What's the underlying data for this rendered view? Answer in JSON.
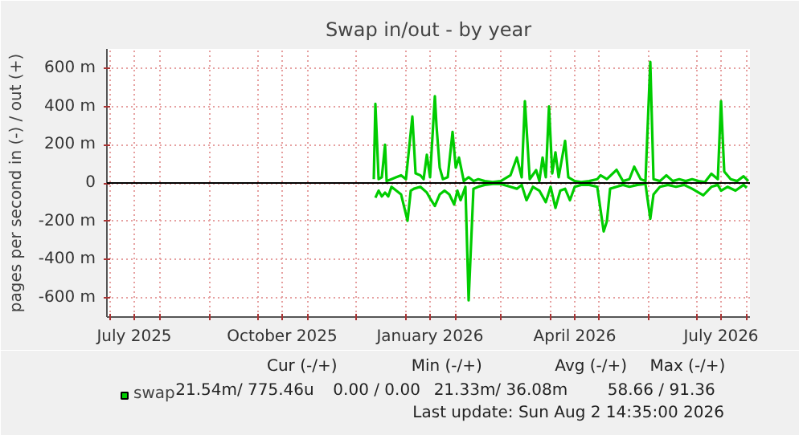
{
  "chart_data": {
    "type": "line",
    "title": "Swap in/out - by year",
    "ylabel": "pages per second in (-) / out (+)",
    "xlim": [
      "2025-06-29",
      "2026-08-03"
    ],
    "ylim": [
      -700,
      700
    ],
    "xticks": [
      {
        "value": "2025-07-01",
        "label": null
      },
      {
        "value": "2025-07-16",
        "label": "July 2025"
      },
      {
        "value": "2025-08-01",
        "label": null
      },
      {
        "value": "2025-09-01",
        "label": null
      },
      {
        "value": "2025-10-01",
        "label": null
      },
      {
        "value": "2025-10-16",
        "label": "October 2025"
      },
      {
        "value": "2025-11-01",
        "label": null
      },
      {
        "value": "2025-12-01",
        "label": null
      },
      {
        "value": "2026-01-01",
        "label": null
      },
      {
        "value": "2026-01-16",
        "label": "January 2026"
      },
      {
        "value": "2026-02-01",
        "label": null
      },
      {
        "value": "2026-03-01",
        "label": null
      },
      {
        "value": "2026-04-01",
        "label": null
      },
      {
        "value": "2026-04-16",
        "label": "April 2026"
      },
      {
        "value": "2026-05-01",
        "label": null
      },
      {
        "value": "2026-06-01",
        "label": null
      },
      {
        "value": "2026-07-01",
        "label": null
      },
      {
        "value": "2026-07-16",
        "label": "July 2026"
      },
      {
        "value": "2026-08-01",
        "label": null
      }
    ],
    "yticks": [
      {
        "value": -600,
        "label": "-600 m"
      },
      {
        "value": -400,
        "label": "-400 m"
      },
      {
        "value": -200,
        "label": "-200 m"
      },
      0,
      {
        "value": 200,
        "label": "200 m"
      },
      {
        "value": 400,
        "label": "400 m"
      },
      {
        "value": 600,
        "label": "600 m"
      }
    ],
    "grid": true,
    "legend": "bottom left",
    "marker": "none",
    "line_style": "solid",
    "ref_lines": [
      {
        "axis": "y",
        "value": 0,
        "color": "#000000"
      }
    ],
    "series": [
      {
        "name": "swap",
        "color": "#00cc00",
        "x": [
          "2025-12-12",
          "2025-12-13",
          "2025-12-15",
          "2025-12-17",
          "2025-12-19",
          "2025-12-20",
          "2025-12-23",
          "2025-12-26",
          "2025-12-29",
          "2026-01-01",
          "2026-01-05",
          "2026-01-07",
          "2026-01-10",
          "2026-01-12",
          "2026-01-14",
          "2026-01-16",
          "2026-01-19",
          "2026-01-20",
          "2026-01-22",
          "2026-01-24",
          "2026-01-27",
          "2026-01-30",
          "2026-02-01",
          "2026-02-03",
          "2026-02-06",
          "2026-02-09",
          "2026-02-12",
          "2026-02-15",
          "2026-02-19",
          "2026-02-24",
          "2026-03-01",
          "2026-03-07",
          "2026-03-11",
          "2026-03-14",
          "2026-03-16",
          "2026-03-19",
          "2026-03-23",
          "2026-03-25",
          "2026-03-27",
          "2026-03-29",
          "2026-03-31",
          "2026-04-02",
          "2026-04-04",
          "2026-04-06",
          "2026-04-10",
          "2026-04-12",
          "2026-04-16",
          "2026-04-20",
          "2026-04-25",
          "2026-04-30",
          "2026-05-02",
          "2026-05-06",
          "2026-05-12",
          "2026-05-16",
          "2026-05-20",
          "2026-05-23",
          "2026-05-27",
          "2026-05-30",
          "2026-06-02",
          "2026-06-04",
          "2026-06-08",
          "2026-06-12",
          "2026-06-16",
          "2026-06-20",
          "2026-06-24",
          "2026-06-28",
          "2026-07-02",
          "2026-07-06",
          "2026-07-10",
          "2026-07-14",
          "2026-07-16",
          "2026-07-18",
          "2026-07-22",
          "2026-07-26",
          "2026-07-30",
          "2026-08-02"
        ],
        "values": [
          20,
          413,
          20,
          30,
          200,
          10,
          20,
          30,
          40,
          20,
          347,
          50,
          40,
          20,
          147,
          30,
          453,
          300,
          80,
          20,
          30,
          267,
          80,
          133,
          10,
          30,
          10,
          20,
          10,
          5,
          10,
          40,
          133,
          30,
          427,
          20,
          67,
          10,
          133,
          30,
          400,
          50,
          160,
          30,
          220,
          30,
          10,
          5,
          10,
          20,
          40,
          20,
          69,
          10,
          20,
          85,
          20,
          10,
          632,
          20,
          10,
          40,
          10,
          20,
          10,
          20,
          10,
          5,
          48,
          20,
          427,
          60,
          20,
          10,
          35,
          10
        ]
      },
      {
        "color": "#00cc00",
        "x": [
          "2025-12-13",
          "2025-12-15",
          "2025-12-17",
          "2025-12-19",
          "2025-12-21",
          "2025-12-23",
          "2025-12-26",
          "2025-12-29",
          "2026-01-02",
          "2026-01-04",
          "2026-01-06",
          "2026-01-10",
          "2026-01-14",
          "2026-01-16",
          "2026-01-19",
          "2026-01-22",
          "2026-01-25",
          "2026-01-28",
          "2026-01-31",
          "2026-02-02",
          "2026-02-04",
          "2026-02-07",
          "2026-02-09",
          "2026-02-12",
          "2026-02-15",
          "2026-02-19",
          "2026-02-24",
          "2026-03-01",
          "2026-03-07",
          "2026-03-11",
          "2026-03-14",
          "2026-03-17",
          "2026-03-21",
          "2026-03-25",
          "2026-03-29",
          "2026-04-01",
          "2026-04-04",
          "2026-04-07",
          "2026-04-10",
          "2026-04-13",
          "2026-04-16",
          "2026-04-20",
          "2026-04-25",
          "2026-04-30",
          "2026-05-04",
          "2026-05-06",
          "2026-05-08",
          "2026-05-12",
          "2026-05-16",
          "2026-05-20",
          "2026-05-25",
          "2026-05-30",
          "2026-06-02",
          "2026-06-04",
          "2026-06-08",
          "2026-06-13",
          "2026-06-18",
          "2026-06-23",
          "2026-06-28",
          "2026-07-05",
          "2026-07-10",
          "2026-07-14",
          "2026-07-16",
          "2026-07-20",
          "2026-07-25",
          "2026-07-30",
          "2026-08-01"
        ],
        "values": [
          -77,
          -40,
          -70,
          -50,
          -70,
          -20,
          -40,
          -60,
          -197,
          -40,
          -30,
          -20,
          -50,
          -80,
          -120,
          -60,
          -40,
          -60,
          -112,
          -40,
          -90,
          -20,
          -613,
          -30,
          -20,
          -10,
          -5,
          -5,
          -20,
          -30,
          -10,
          -90,
          -20,
          -40,
          -100,
          -20,
          -130,
          -40,
          -30,
          -90,
          -20,
          -10,
          -10,
          -20,
          -253,
          -200,
          -30,
          -20,
          -10,
          -20,
          -10,
          -5,
          -187,
          -60,
          -20,
          -10,
          -20,
          -10,
          -30,
          -64,
          -20,
          -10,
          -40,
          -20,
          -40,
          -10,
          -25
        ]
      }
    ],
    "annotations": [
      "Cur (-/+)",
      "Min (-/+)",
      "Avg (-/+)",
      "Max (-/+)",
      "21.54m/   775.46u",
      "0.00 /     0.00",
      "21.33m/   36.08m",
      "58.66 /   91.36",
      "Last update: Sun Aug  2 14:35:00 2026"
    ]
  }
}
